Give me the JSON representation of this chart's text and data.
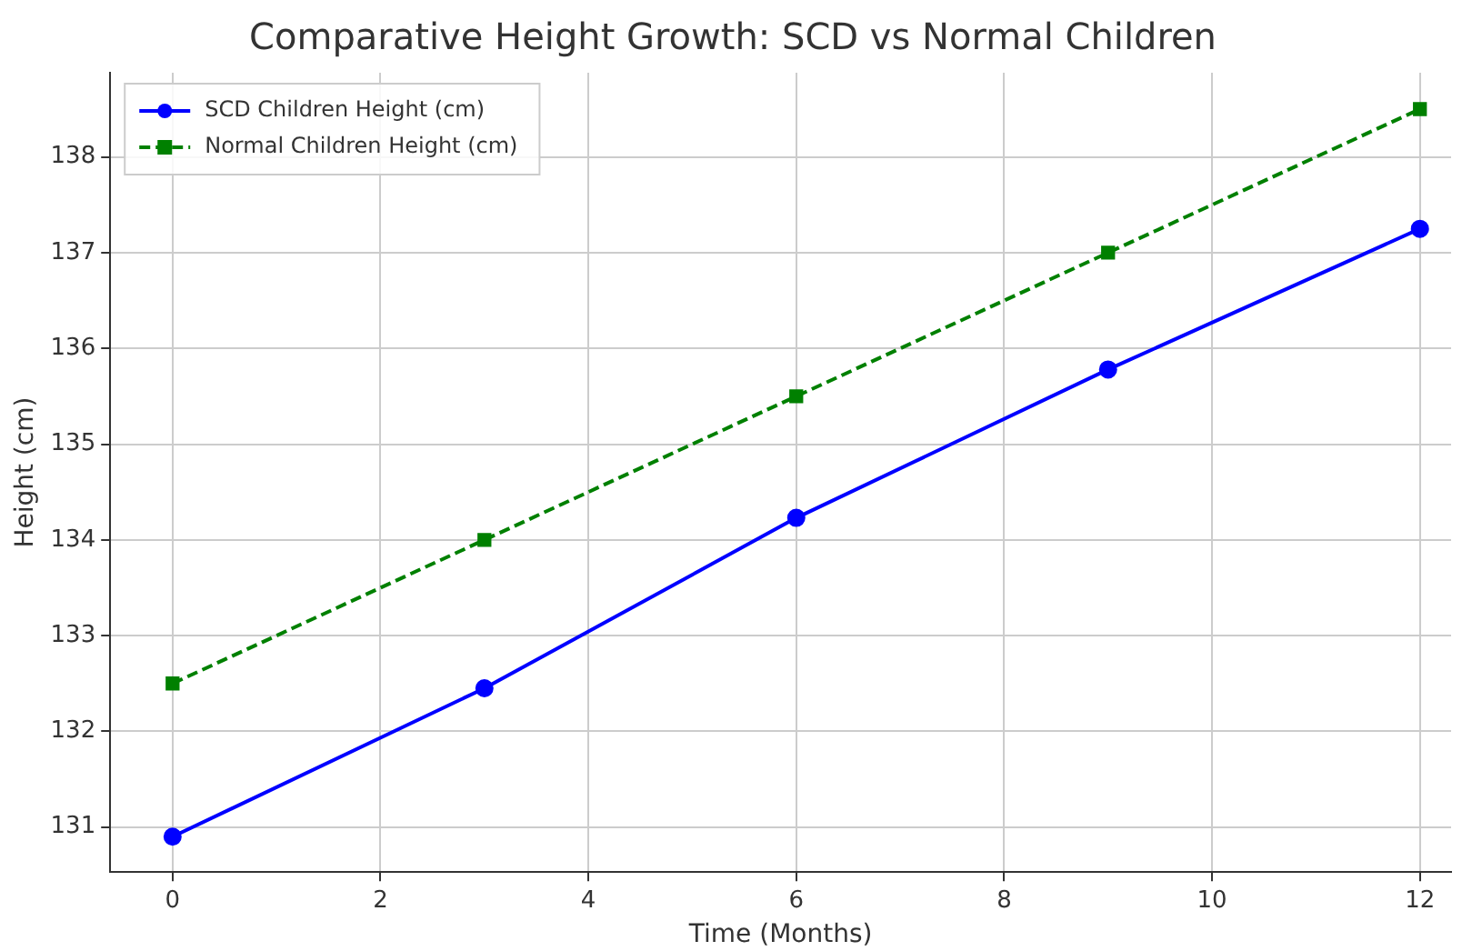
{
  "chart_data": {
    "type": "line",
    "title": "Comparative Height Growth: SCD vs Normal Children",
    "xlabel": "Time (Months)",
    "ylabel": "Height (cm)",
    "x": [
      0,
      3,
      6,
      9,
      12
    ],
    "series": [
      {
        "name": "SCD Children Height (cm)",
        "color": "#0000ff",
        "marker": "circle",
        "line_style": "solid",
        "values": [
          130.9,
          132.45,
          134.23,
          135.78,
          137.25
        ]
      },
      {
        "name": "Normal Children Height (cm)",
        "color": "#008000",
        "marker": "square",
        "line_style": "dashed",
        "values": [
          132.5,
          134,
          135.5,
          137,
          138.5
        ]
      }
    ],
    "xlim": [
      -0.6,
      12.3
    ],
    "xticks": [
      0,
      2,
      4,
      6,
      8,
      10,
      12
    ],
    "ylim": [
      130.53,
      138.88
    ],
    "yticks": [
      131,
      132,
      133,
      134,
      135,
      136,
      137,
      138
    ],
    "grid": true,
    "legend": "top left"
  }
}
